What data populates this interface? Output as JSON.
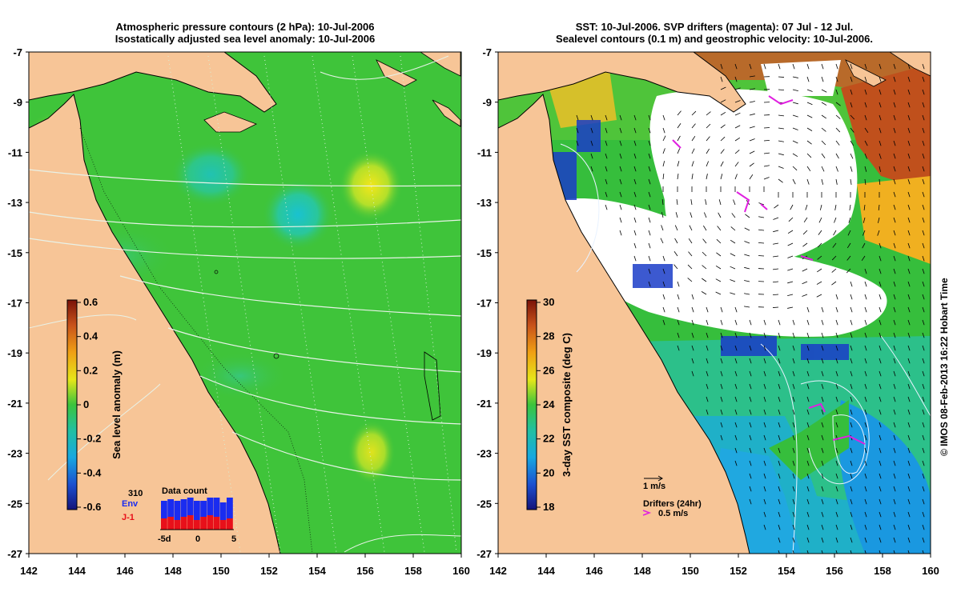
{
  "left_panel": {
    "title_line1": "Atmospheric pressure contours (2 hPa): 10-Jul-2006",
    "title_line2": "Isostatically adjusted sea level anomaly: 10-Jul-2006",
    "colorbar": {
      "label": "Sea level anomaly (m)",
      "ticks": [
        "0.6",
        "0.4",
        "0.2",
        "0",
        "-0.2",
        "-0.4",
        "-0.6"
      ]
    },
    "data_count": {
      "title": "Data count",
      "count": "310",
      "env_label": "Env",
      "j1_label": "J-1",
      "axis_labels": [
        "-5d",
        "0",
        "5"
      ],
      "env_color": "#1a2cf0",
      "j1_color": "#e8101a"
    }
  },
  "right_panel": {
    "title_line1": "SST: 10-Jul-2006. SVP drifters (magenta): 07 Jul - 12 Jul.",
    "title_line2": "Sealevel contours (0.1 m) and geostrophic velocity: 10-Jul-2006.",
    "colorbar": {
      "label": "3-day SST composite (deg C)",
      "ticks": [
        "30",
        "28",
        "26",
        "24",
        "22",
        "20",
        "18"
      ]
    },
    "velocity_key": "1 m/s",
    "drifters_label": "Drifters (24hr)",
    "drifter_speed_label": "0.5 m/s"
  },
  "axes": {
    "lat_ticks": [
      "-7",
      "-9",
      "-11",
      "-13",
      "-15",
      "-17",
      "-19",
      "-21",
      "-23",
      "-25",
      "-27"
    ],
    "lon_ticks": [
      "142",
      "144",
      "146",
      "148",
      "150",
      "152",
      "154",
      "156",
      "158",
      "160"
    ]
  },
  "credit": "© IMOS 08-Feb-2013 16:22 Hobart Time",
  "colors": {
    "land": "#f7c597",
    "ocean_sla": "#3fc43a",
    "drifter": "#e020e0",
    "cloud": "#ffffff"
  }
}
